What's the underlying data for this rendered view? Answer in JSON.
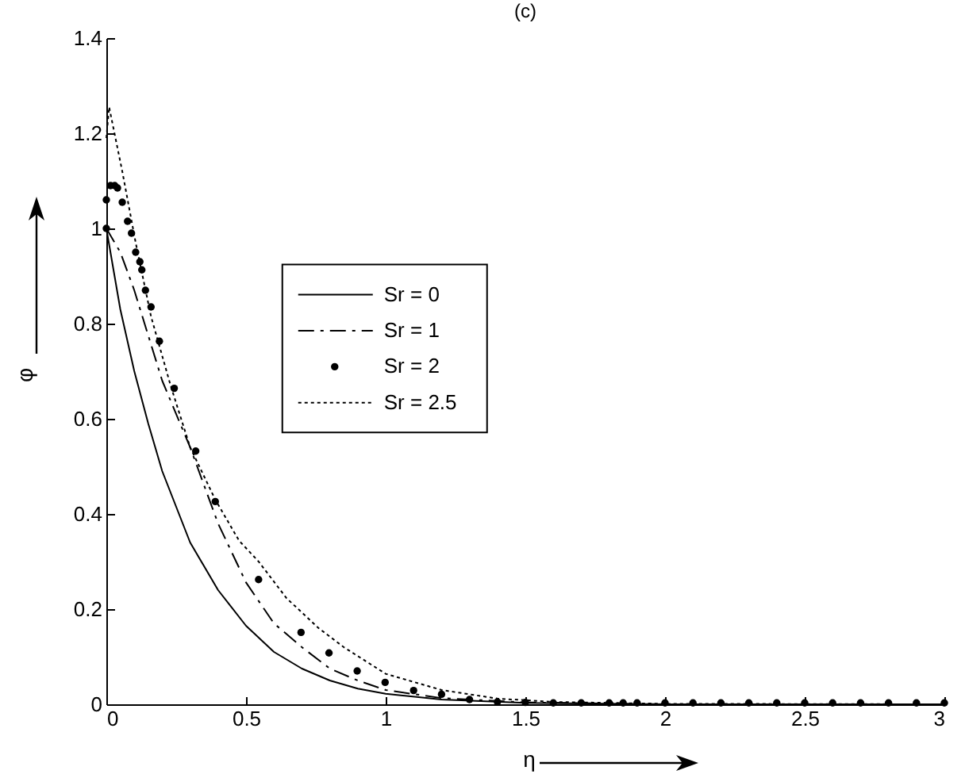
{
  "chart_data": {
    "type": "line",
    "title": "(c)",
    "xlabel": "η",
    "ylabel": "φ",
    "x": [
      0,
      0.05,
      0.1,
      0.15,
      0.2,
      0.3,
      0.4,
      0.5,
      0.6,
      0.7,
      0.8,
      0.9,
      1.0,
      1.2,
      1.5,
      2,
      3
    ],
    "series": [
      {
        "name": "Sr = 0",
        "color": "#000000",
        "line_style": "solid",
        "values": [
          1.0,
          0.83,
          0.7,
          0.59,
          0.49,
          0.34,
          0.24,
          0.165,
          0.11,
          0.075,
          0.05,
          0.033,
          0.022,
          0.01,
          0.003,
          0,
          0
        ]
      },
      {
        "name": "Sr = 1",
        "color": "#000000",
        "line_style": "dashed",
        "x": [
          0,
          0.05,
          0.1,
          0.2,
          0.3,
          0.4,
          0.5,
          0.6,
          0.7,
          0.8,
          0.9,
          1.0,
          1.2,
          1.5,
          2,
          3
        ],
        "values": [
          1.0,
          0.95,
          0.87,
          0.68,
          0.54,
          0.38,
          0.256,
          0.17,
          0.12,
          0.075,
          0.05,
          0.03,
          0.013,
          0.004,
          0,
          0
        ]
      },
      {
        "name": "Sr = 2",
        "type": "scatter",
        "marker": "circle",
        "color": "#000000",
        "x": [
          0,
          0,
          0.015,
          0.03,
          0.04,
          0.057,
          0.076,
          0.09,
          0.105,
          0.12,
          0.127,
          0.14,
          0.16,
          0.19,
          0.243,
          0.32,
          0.39,
          0.545,
          0.697,
          0.797,
          0.898,
          0.998,
          1.1,
          1.2,
          1.3,
          1.4,
          1.5,
          1.6,
          1.7,
          1.8,
          1.85,
          1.9,
          2.0,
          2.1,
          2.2,
          2.3,
          2.4,
          2.5,
          2.6,
          2.7,
          2.8,
          2.9,
          3.0
        ],
        "values": [
          1.0,
          1.06,
          1.09,
          1.09,
          1.085,
          1.055,
          1.015,
          0.99,
          0.95,
          0.93,
          0.913,
          0.87,
          0.835,
          0.763,
          0.664,
          0.532,
          0.426,
          0.262,
          0.151,
          0.108,
          0.07,
          0.046,
          0.029,
          0.021,
          0.01,
          0.005,
          0.004,
          0.003,
          0.003,
          0.003,
          0.003,
          0.003,
          0.003,
          0.003,
          0.003,
          0.003,
          0.003,
          0.003,
          0.003,
          0.003,
          0.003,
          0.003,
          0.003
        ]
      },
      {
        "name": "Sr = 2.5",
        "color": "#000000",
        "line_style": "dotted",
        "x": [
          0,
          0.01,
          0.057,
          0.105,
          0.16,
          0.23,
          0.3,
          0.39,
          0.475,
          0.545,
          0.645,
          0.76,
          0.85,
          1.0,
          1.2,
          1.4,
          1.6,
          2,
          3
        ],
        "values": [
          1.19,
          1.255,
          1.12,
          0.97,
          0.815,
          0.67,
          0.54,
          0.43,
          0.344,
          0.3,
          0.223,
          0.16,
          0.12,
          0.064,
          0.03,
          0.012,
          0.005,
          0.001,
          0
        ]
      }
    ],
    "xlim": [
      0,
      3
    ],
    "xticks": [
      0,
      0.5,
      1,
      1.5,
      2,
      2.5,
      3
    ],
    "ylim": [
      0,
      1.4
    ],
    "yticks": [
      0,
      0.2,
      0.4,
      0.6,
      0.8,
      1,
      1.2,
      1.4
    ],
    "grid": false,
    "legend": "left"
  }
}
